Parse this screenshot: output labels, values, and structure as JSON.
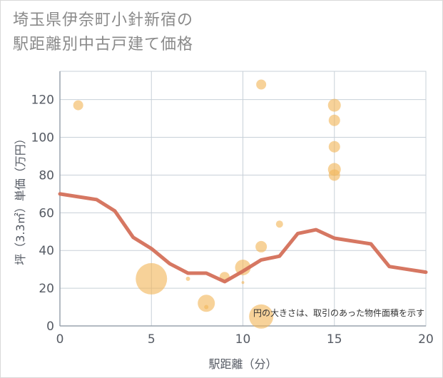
{
  "title_line1": "埼玉県伊奈町小針新宿の",
  "title_line2": "駅距離別中古戸建て価格",
  "chart_data": {
    "type": "scatter",
    "xlabel": "駅距離（分）",
    "ylabel": "坪（3.3㎡）単価（万円）",
    "xlim": [
      0,
      20
    ],
    "ylim": [
      0,
      135
    ],
    "x_ticks": [
      "0",
      "5",
      "10",
      "15",
      "20"
    ],
    "y_ticks": [
      "0",
      "20",
      "40",
      "60",
      "80",
      "100",
      "120"
    ],
    "grid": true,
    "note": "円の大きさは、取引のあった物件面積を示す",
    "colors": {
      "bubble": "#f2b65a",
      "line": "#d4705a",
      "grid": "#c8d0d8",
      "text": "#555a63"
    },
    "bubbles": [
      {
        "x": 1,
        "y": 117,
        "r": 7
      },
      {
        "x": 5,
        "y": 25,
        "r": 22
      },
      {
        "x": 7,
        "y": 25,
        "r": 3
      },
      {
        "x": 8,
        "y": 12,
        "r": 12
      },
      {
        "x": 8,
        "y": 10,
        "r": 3
      },
      {
        "x": 9,
        "y": 26,
        "r": 7
      },
      {
        "x": 10,
        "y": 31,
        "r": 11
      },
      {
        "x": 10,
        "y": 23,
        "r": 2
      },
      {
        "x": 11,
        "y": 128,
        "r": 7
      },
      {
        "x": 11,
        "y": 42,
        "r": 8
      },
      {
        "x": 11,
        "y": 5,
        "r": 17
      },
      {
        "x": 12,
        "y": 54,
        "r": 5
      },
      {
        "x": 15,
        "y": 117,
        "r": 9
      },
      {
        "x": 15,
        "y": 109,
        "r": 8
      },
      {
        "x": 15,
        "y": 95,
        "r": 8
      },
      {
        "x": 15,
        "y": 83,
        "r": 9
      },
      {
        "x": 15,
        "y": 80,
        "r": 8
      }
    ],
    "trend": {
      "x": [
        0,
        1,
        2,
        3,
        4,
        5,
        6,
        7,
        8,
        9,
        10,
        11,
        12,
        13,
        14,
        15,
        16,
        17,
        18,
        19,
        20
      ],
      "y": [
        70,
        68.5,
        67,
        61,
        47,
        41,
        33,
        28,
        28,
        23.5,
        29,
        35,
        37,
        49,
        51,
        46.5,
        45,
        43.5,
        31.5,
        30,
        28.5
      ]
    }
  }
}
